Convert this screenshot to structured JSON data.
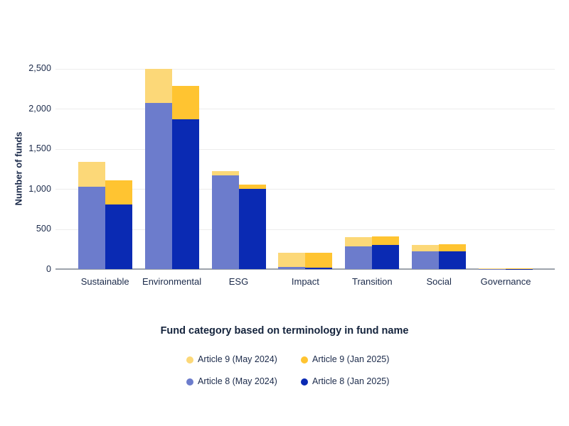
{
  "chart_data": {
    "type": "bar",
    "variant": "paired-stacked-columns",
    "title": "",
    "xlabel": "Fund category based on terminology in fund name",
    "ylabel": "Number of funds",
    "categories": [
      "Sustainable",
      "Environmental",
      "ESG",
      "Impact",
      "Transition",
      "Social",
      "Governance"
    ],
    "series": [
      {
        "name": "Article 9 (May 2024)",
        "group": "May 2024",
        "stack": "top",
        "color": "#FCD878",
        "values": [
          310,
          425,
          55,
          180,
          110,
          80,
          8
        ]
      },
      {
        "name": "Article 9 (Jan 2025)",
        "group": "Jan 2025",
        "stack": "top",
        "color": "#FFC431",
        "values": [
          305,
          415,
          55,
          185,
          100,
          85,
          8
        ]
      },
      {
        "name": "Article 8 (May 2024)",
        "group": "May 2024",
        "stack": "bottom",
        "color": "#6C7CCC",
        "values": [
          1030,
          2075,
          1170,
          25,
          285,
          220,
          3
        ]
      },
      {
        "name": "Article 8 (Jan 2025)",
        "group": "Jan 2025",
        "stack": "bottom",
        "color": "#0A2AB3",
        "values": [
          805,
          1870,
          1000,
          15,
          305,
          225,
          4
        ]
      }
    ],
    "ylim": [
      0,
      2500
    ],
    "yticks": [
      {
        "value": 0,
        "label": "0"
      },
      {
        "value": 500,
        "label": "500"
      },
      {
        "value": 1000,
        "label": "1,000"
      },
      {
        "value": 1500,
        "label": "1,500"
      },
      {
        "value": 2000,
        "label": "2,000"
      },
      {
        "value": 2500,
        "label": "2,500"
      }
    ],
    "grid": true,
    "legend_position": "bottom"
  },
  "colors": {
    "background": "#FFFFFF",
    "text_navy": "#1B2A4A",
    "gridline": "#ECECEC",
    "axis_line": "#9DA3AC"
  }
}
